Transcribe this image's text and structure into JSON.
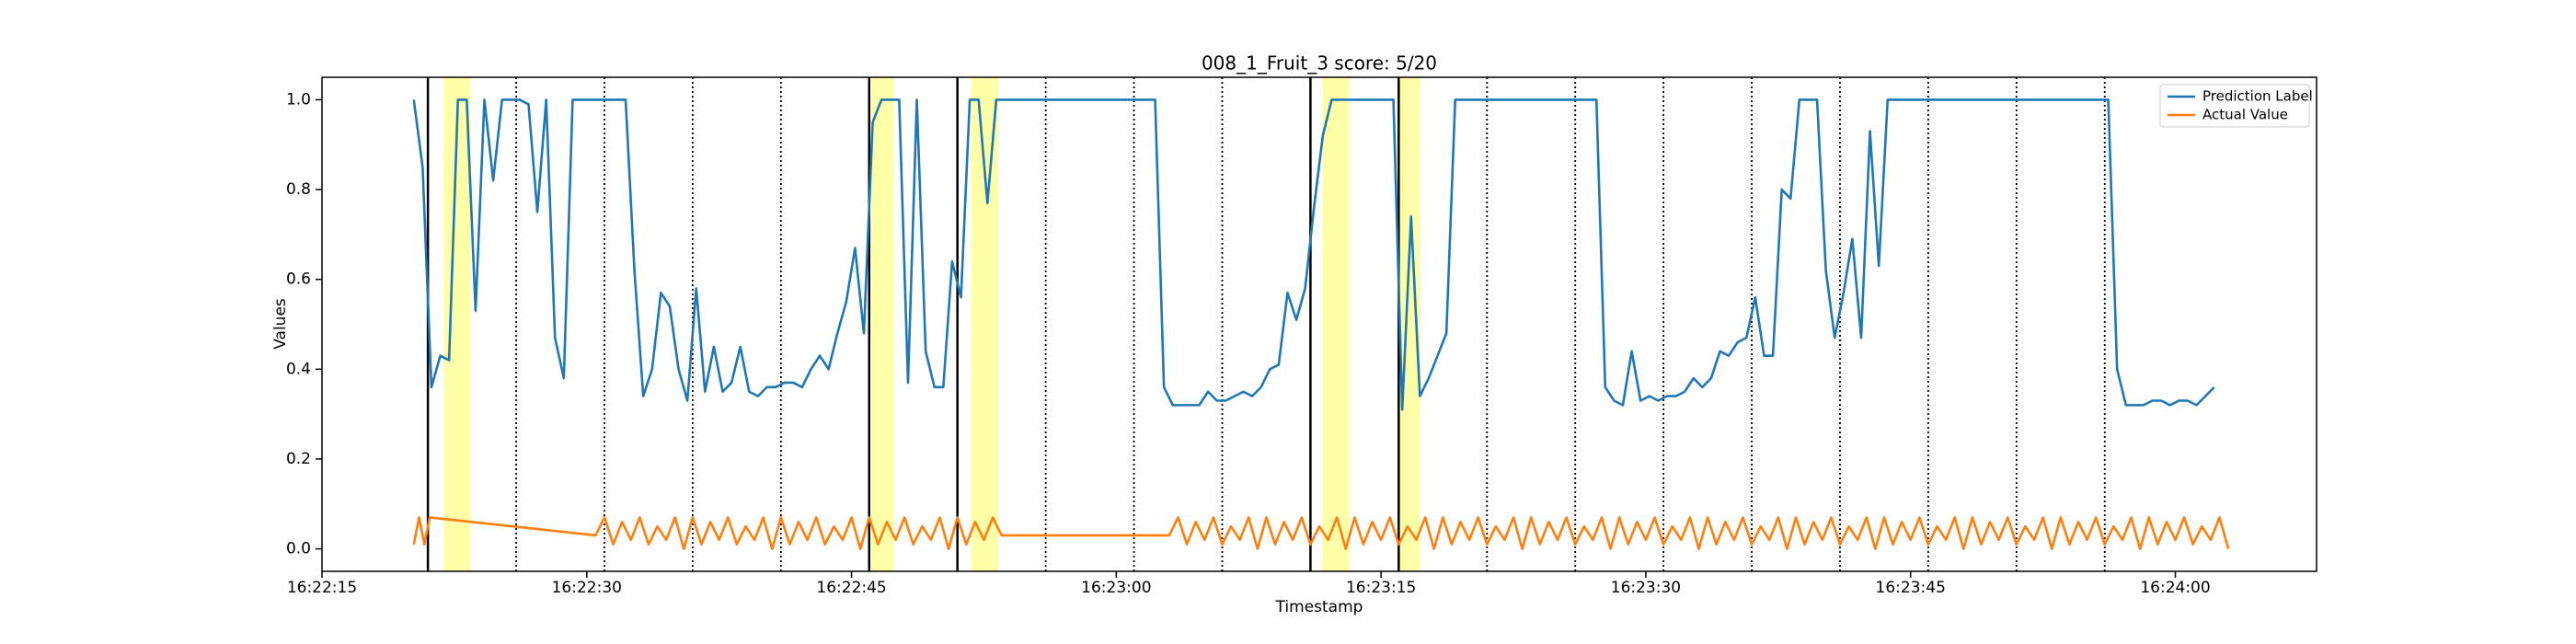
{
  "chart_data": {
    "type": "line",
    "title": "008_1_Fruit_3 score: 5/20",
    "x_label": "Timestamp",
    "y_label": "Values",
    "xlim": [
      59535,
      59648
    ],
    "ylim": [
      -0.05,
      1.05
    ],
    "xticks": [
      {
        "value": 59535,
        "label": "16:22:15"
      },
      {
        "value": 59550,
        "label": "16:22:30"
      },
      {
        "value": 59565,
        "label": "16:22:45"
      },
      {
        "value": 59580,
        "label": "16:23:00"
      },
      {
        "value": 59595,
        "label": "16:23:15"
      },
      {
        "value": 59610,
        "label": "16:23:30"
      },
      {
        "value": 59625,
        "label": "16:23:45"
      },
      {
        "value": 59640,
        "label": "16:24:00"
      }
    ],
    "yticks": [
      {
        "value": 0,
        "label": "0.0"
      },
      0.2,
      0.4,
      0.6,
      0.8,
      {
        "value": 1,
        "label": "1.0"
      }
    ],
    "legend": "upper right",
    "solid_vlines": [
      59541,
      59566,
      59571,
      59591,
      59596
    ],
    "dotted_vlines": [
      59546,
      59551,
      59556,
      59561,
      59576,
      59581,
      59586,
      59601,
      59606,
      59611,
      59616,
      59621,
      59626,
      59631,
      59636
    ],
    "highlight_spans": [
      [
        59541.9,
        59543.4
      ],
      [
        59566.1,
        59567.4
      ],
      [
        59571.8,
        59573.3
      ],
      [
        59591.7,
        59593.2
      ],
      [
        59596.0,
        59597.2
      ]
    ],
    "highlight_color": "#ffffa8",
    "series": [
      {
        "name": "Prediction Label",
        "color": "#1f77b4",
        "x": [
          59540.2,
          59540.7,
          59541.2,
          59541.7,
          59542.2,
          59542.7,
          59543.2,
          59543.7,
          59544.2,
          59544.7,
          59545.2,
          59545.7,
          59546.2,
          59546.7,
          59547.2,
          59547.7,
          59548.2,
          59548.7,
          59549.2,
          59552.2,
          59552.7,
          59553.2,
          59553.7,
          59554.2,
          59554.7,
          59555.2,
          59555.7,
          59556.2,
          59556.7,
          59557.2,
          59557.7,
          59558.2,
          59558.7,
          59559.2,
          59559.7,
          59560.2,
          59560.7,
          59561.2,
          59561.7,
          59562.2,
          59562.7,
          59563.2,
          59563.7,
          59564.2,
          59564.7,
          59565.2,
          59565.7,
          59566.2,
          59566.7,
          59567.7,
          59568.2,
          59568.7,
          59569.2,
          59569.7,
          59570.2,
          59570.7,
          59571.2,
          59571.7,
          59572.2,
          59572.7,
          59573.2,
          59582.2,
          59582.7,
          59583.2,
          59583.7,
          59584.2,
          59584.7,
          59585.2,
          59585.7,
          59586.2,
          59586.7,
          59587.2,
          59587.7,
          59588.2,
          59588.7,
          59589.2,
          59589.7,
          59590.2,
          59590.7,
          59591.2,
          59591.7,
          59592.2,
          59595.7,
          59596.2,
          59596.7,
          59597.2,
          59597.7,
          59598.2,
          59598.7,
          59599.2,
          59607.2,
          59607.7,
          59608.2,
          59608.7,
          59609.2,
          59609.7,
          59610.2,
          59610.7,
          59611.2,
          59611.7,
          59612.2,
          59612.7,
          59613.2,
          59613.7,
          59614.2,
          59614.7,
          59615.2,
          59615.7,
          59616.2,
          59616.7,
          59617.2,
          59617.7,
          59618.2,
          59618.7,
          59619.7,
          59620.2,
          59620.7,
          59621.2,
          59621.7,
          59622.2,
          59622.7,
          59623.2,
          59623.7,
          59636.2,
          59636.7,
          59637.2,
          59637.7,
          59638.2,
          59638.7,
          59639.2,
          59639.7,
          59640.2,
          59640.7,
          59641.2,
          59641.7,
          59642.2
        ],
        "values": [
          1.0,
          0.85,
          0.36,
          0.43,
          0.42,
          1.0,
          1.0,
          0.53,
          1.0,
          0.82,
          1.0,
          1.0,
          1.0,
          0.99,
          0.75,
          1.0,
          0.47,
          0.38,
          1.0,
          1.0,
          0.62,
          0.34,
          0.4,
          0.57,
          0.54,
          0.4,
          0.33,
          0.58,
          0.35,
          0.45,
          0.35,
          0.37,
          0.45,
          0.35,
          0.34,
          0.36,
          0.36,
          0.37,
          0.37,
          0.36,
          0.4,
          0.43,
          0.4,
          0.48,
          0.55,
          0.67,
          0.48,
          0.95,
          1.0,
          1.0,
          0.37,
          1.0,
          0.44,
          0.36,
          0.36,
          0.64,
          0.56,
          1.0,
          1.0,
          0.77,
          1.0,
          1.0,
          0.36,
          0.32,
          0.32,
          0.32,
          0.32,
          0.35,
          0.33,
          0.33,
          0.34,
          0.35,
          0.34,
          0.36,
          0.4,
          0.41,
          0.57,
          0.51,
          0.58,
          0.76,
          0.92,
          1.0,
          1.0,
          0.31,
          0.74,
          0.34,
          0.38,
          0.43,
          0.48,
          1.0,
          1.0,
          0.36,
          0.33,
          0.32,
          0.44,
          0.33,
          0.34,
          0.33,
          0.34,
          0.34,
          0.35,
          0.38,
          0.36,
          0.38,
          0.44,
          0.43,
          0.46,
          0.47,
          0.56,
          0.43,
          0.43,
          0.8,
          0.78,
          1.0,
          1.0,
          0.62,
          0.47,
          0.57,
          0.69,
          0.47,
          0.93,
          0.63,
          1.0,
          1.0,
          0.4,
          0.32,
          0.32,
          0.32,
          0.33,
          0.33,
          0.32,
          0.33,
          0.33,
          0.32,
          0.34,
          0.36
        ]
      },
      {
        "name": "Actual Value",
        "color": "#ff7f0e",
        "x": [
          59540.2,
          59540.5,
          59540.8,
          59541.1,
          59550.5,
          59551,
          59551.5,
          59552,
          59552.5,
          59553,
          59553.5,
          59554,
          59554.5,
          59555,
          59555.5,
          59556,
          59556.5,
          59557,
          59557.5,
          59558,
          59558.5,
          59559,
          59559.5,
          59560,
          59560.5,
          59561,
          59561.5,
          59562,
          59562.5,
          59563,
          59563.5,
          59564,
          59564.5,
          59565,
          59565.5,
          59566,
          59566.5,
          59567,
          59567.5,
          59568,
          59568.5,
          59569,
          59569.5,
          59570,
          59570.5,
          59571,
          59571.5,
          59572,
          59572.5,
          59573,
          59573.5,
          59583,
          59583.5,
          59584,
          59584.5,
          59585,
          59585.5,
          59586,
          59586.5,
          59587,
          59587.5,
          59588,
          59588.5,
          59589,
          59589.5,
          59590,
          59590.5,
          59591,
          59591.5,
          59592,
          59592.5,
          59593,
          59593.5,
          59594,
          59594.5,
          59595,
          59595.5,
          59596,
          59596.5,
          59597,
          59597.5,
          59598,
          59598.5,
          59599,
          59599.5,
          59600,
          59600.5,
          59601,
          59601.5,
          59602,
          59602.5,
          59603,
          59603.5,
          59604,
          59604.5,
          59605,
          59605.5,
          59606,
          59606.5,
          59607,
          59607.5,
          59608,
          59608.5,
          59609,
          59609.5,
          59610,
          59610.5,
          59611,
          59611.5,
          59612,
          59612.5,
          59613,
          59613.5,
          59614,
          59614.5,
          59615,
          59615.5,
          59616,
          59616.5,
          59617,
          59617.5,
          59618,
          59618.5,
          59619,
          59619.5,
          59620,
          59620.5,
          59621,
          59621.5,
          59622,
          59622.5,
          59623,
          59623.5,
          59624,
          59624.5,
          59625,
          59625.5,
          59626,
          59626.5,
          59627,
          59627.5,
          59628,
          59628.5,
          59629,
          59629.5,
          59630,
          59630.5,
          59631,
          59631.5,
          59632,
          59632.5,
          59633,
          59633.5,
          59634,
          59634.5,
          59635,
          59635.5,
          59636,
          59636.5,
          59637,
          59637.5,
          59638,
          59638.5,
          59639,
          59639.5,
          59640,
          59640.5,
          59641,
          59641.5,
          59642,
          59642.5,
          59643
        ],
        "values": [
          0.01,
          0.07,
          0.01,
          0.07,
          0.03,
          0.07,
          0.01,
          0.06,
          0.02,
          0.07,
          0.01,
          0.05,
          0.02,
          0.07,
          0,
          0.07,
          0.01,
          0.06,
          0.02,
          0.07,
          0.01,
          0.05,
          0.02,
          0.07,
          0,
          0.07,
          0.01,
          0.06,
          0.02,
          0.07,
          0.01,
          0.05,
          0.02,
          0.07,
          0,
          0.07,
          0.01,
          0.06,
          0.02,
          0.07,
          0.01,
          0.05,
          0.02,
          0.07,
          0,
          0.07,
          0.01,
          0.06,
          0.02,
          0.07,
          0.03,
          0.03,
          0.07,
          0.01,
          0.06,
          0.02,
          0.07,
          0.01,
          0.05,
          0.02,
          0.07,
          0,
          0.07,
          0.01,
          0.06,
          0.02,
          0.07,
          0.01,
          0.05,
          0.02,
          0.07,
          0,
          0.07,
          0.01,
          0.06,
          0.02,
          0.07,
          0.01,
          0.05,
          0.02,
          0.07,
          0,
          0.07,
          0.01,
          0.06,
          0.02,
          0.07,
          0.01,
          0.05,
          0.02,
          0.07,
          0,
          0.07,
          0.01,
          0.06,
          0.02,
          0.07,
          0.01,
          0.05,
          0.02,
          0.07,
          0,
          0.07,
          0.01,
          0.06,
          0.02,
          0.07,
          0.01,
          0.05,
          0.02,
          0.07,
          0,
          0.07,
          0.01,
          0.06,
          0.02,
          0.07,
          0.01,
          0.05,
          0.02,
          0.07,
          0,
          0.07,
          0.01,
          0.06,
          0.02,
          0.07,
          0.01,
          0.05,
          0.02,
          0.07,
          0,
          0.07,
          0.01,
          0.06,
          0.02,
          0.07,
          0.01,
          0.05,
          0.02,
          0.07,
          0,
          0.07,
          0.01,
          0.06,
          0.02,
          0.07,
          0.01,
          0.05,
          0.02,
          0.07,
          0,
          0.07,
          0.01,
          0.06,
          0.02,
          0.07,
          0.01,
          0.05,
          0.02,
          0.07,
          0,
          0.07,
          0.01,
          0.06,
          0.02,
          0.07,
          0.01,
          0.05,
          0.02,
          0.07,
          0
        ]
      }
    ]
  }
}
